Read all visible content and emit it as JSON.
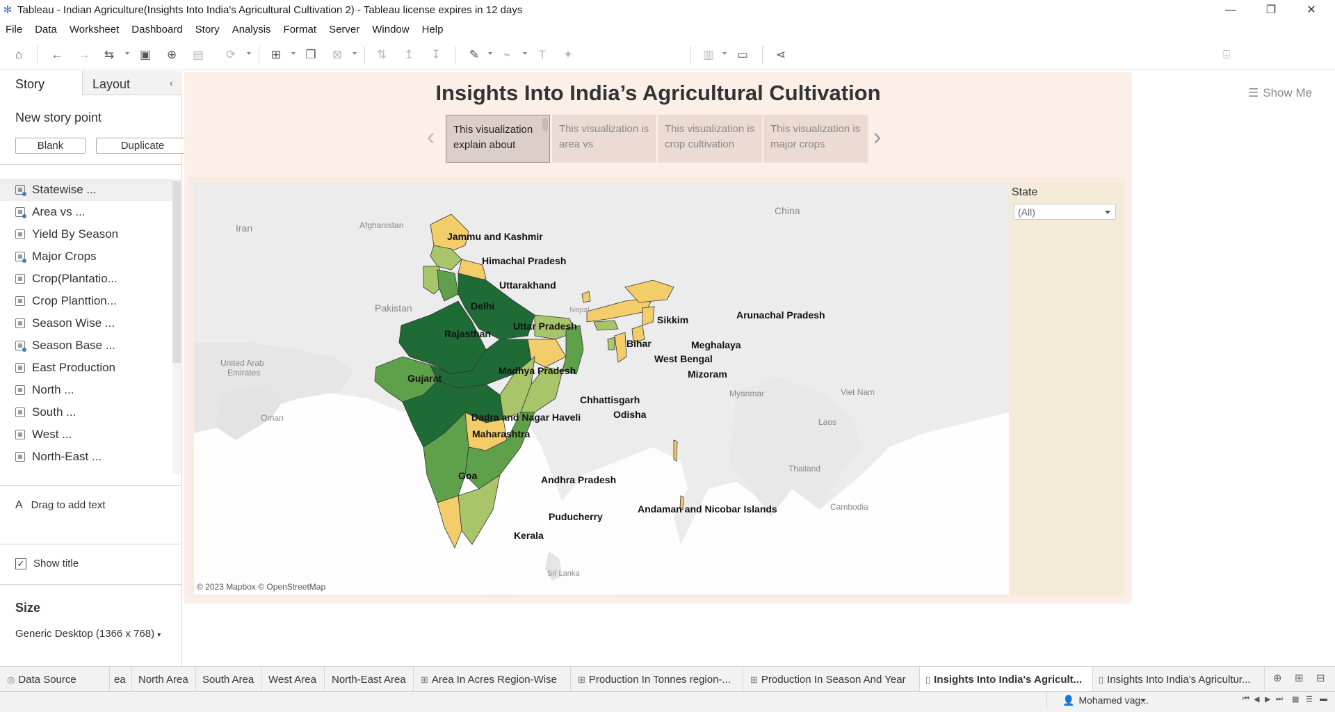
{
  "window": {
    "title": "Tableau - Indian Agriculture(Insights Into India's Agricultural Cultivation 2) - Tableau license expires in 12 days",
    "minimize": "—",
    "restore": "❐",
    "close": "✕"
  },
  "menu": [
    "File",
    "Data",
    "Worksheet",
    "Dashboard",
    "Story",
    "Analysis",
    "Format",
    "Server",
    "Window",
    "Help"
  ],
  "toolbar": {
    "show_me": "Show Me"
  },
  "left_pane": {
    "tab_story": "Story",
    "tab_layout": "Layout",
    "new_story_point": "New story point",
    "blank_button": "Blank",
    "duplicate_button": "Duplicate",
    "sheets": [
      "Statewise ...",
      "Area vs ...",
      "Yield By Season",
      "Major Crops",
      "Crop(Plantatio...",
      "Crop Planttion...",
      "Season Wise ...",
      "Season Base ...",
      "East Production",
      "North ...",
      "South ...",
      "West ...",
      "North-East ..."
    ],
    "drag_to_add_text": "Drag to add text",
    "show_title": "Show title",
    "size_label": "Size",
    "size_value": "Generic Desktop (1366 x 768)"
  },
  "story": {
    "title": "Insights Into India’s Agricultural Cultivation",
    "points": [
      "This visualization explain about",
      "This visualization is area vs",
      "This visualization is crop cultivation",
      "This visualization is major crops"
    ],
    "filter_label": "State",
    "filter_value": "(All)"
  },
  "map": {
    "attribution": "© 2023 Mapbox © OpenStreetMap",
    "countries": {
      "iran": "Iran",
      "afghanistan": "Afghanistan",
      "pakistan": "Pakistan",
      "china": "China",
      "nepal": "Nepal",
      "uae_1": "United Arab",
      "uae_2": "Emirates",
      "oman": "Oman",
      "myanmar": "Myanmar",
      "viet_nam": "Viet Nam",
      "laos": "Laos",
      "thailand": "Thailand",
      "cambodia": "Cambodia",
      "sri_lanka": "Sri Lanka"
    },
    "states": {
      "jk": "Jammu and Kashmir",
      "hp": "Himachal Pradesh",
      "uk": "Uttarakhand",
      "delhi": "Delhi",
      "raj": "Rajasthan",
      "up": "Uttar Pradesh",
      "sikkim": "Sikkim",
      "ar": "Arunachal Pradesh",
      "bihar": "Bihar",
      "megh": "Meghalaya",
      "wb": "West Bengal",
      "miz": "Mizoram",
      "guj": "Gujarat",
      "mp": "Madhya Pradesh",
      "chh": "Chhattisgarh",
      "dnh": "Dadra and Nagar Haveli",
      "odisha": "Odisha",
      "maha": "Maharashtra",
      "goa": "Goa",
      "ap": "Andhra Pradesh",
      "anI": "Andaman and Nicobar Islands",
      "pud": "Puducherry",
      "kerala": "Kerala"
    },
    "colors": {
      "dark_green": "#1e6b36",
      "mid_green": "#5fa14b",
      "light_green": "#a9c56a",
      "yellow": "#f3cd6a"
    }
  },
  "bottom_tabs": [
    "Data Source",
    "ea",
    "North Area",
    "South Area",
    "West Area",
    "North-East Area",
    "Area In Acres Region-Wise",
    "Production In Tonnes region-...",
    "Production In Season And Year",
    "Insights Into India's Agricult...",
    "Insights Into India's Agricultur..."
  ],
  "status": {
    "user": "Mohamed vag..."
  }
}
